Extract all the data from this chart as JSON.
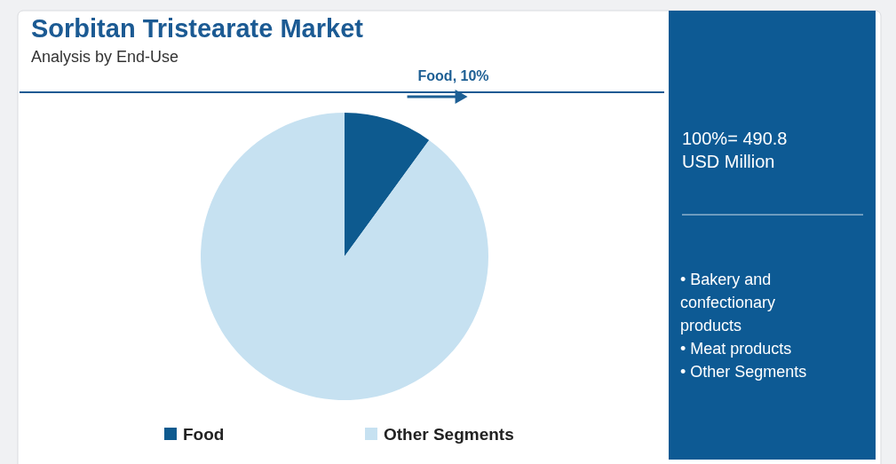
{
  "chart_data": {
    "type": "pie",
    "title": "Sorbitan Tristearate Market",
    "subtitle": "Analysis by End-Use",
    "categories": [
      "Food",
      "Other Segments"
    ],
    "values": [
      10,
      90
    ],
    "colors": [
      "#0d5a8f",
      "#c6e1f1"
    ],
    "value_labels": [
      "Food, 10%",
      null
    ],
    "legend": "bottom",
    "annotations": [
      "100%= 490.8 USD Million",
      "• Bakery and confectionary products",
      "• Meat products",
      "• Other Segments"
    ]
  }
}
